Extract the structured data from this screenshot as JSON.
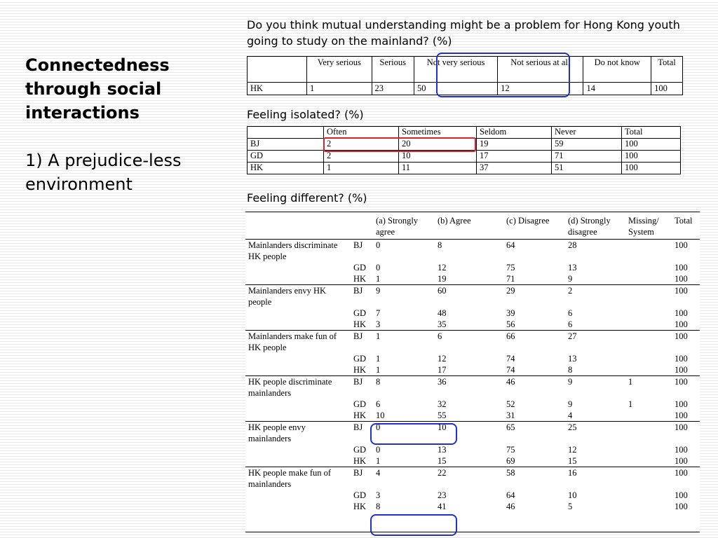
{
  "slide": {
    "title": "Connectedness through social interactions",
    "subtitle": "1) A prejudice-less environment"
  },
  "q1": {
    "caption": "Do you think mutual understanding might be a problem for Hong Kong youth going to study on the mainland? (%)",
    "headers": [
      "",
      "Very serious",
      "Serious",
      "Not very serious",
      "Not serious at all",
      "Do not know",
      "Total"
    ],
    "row": [
      "HK",
      "1",
      "23",
      "50",
      "12",
      "14",
      "100"
    ]
  },
  "q2": {
    "caption": "Feeling isolated? (%)",
    "headers": [
      "",
      "Often",
      "Sometimes",
      "Seldom",
      "Never",
      "Total"
    ],
    "rows": [
      [
        "BJ",
        "2",
        "20",
        "19",
        "59",
        "100"
      ],
      [
        "GD",
        "2",
        "10",
        "17",
        "71",
        "100"
      ],
      [
        "HK",
        "1",
        "11",
        "37",
        "51",
        "100"
      ]
    ]
  },
  "q3": {
    "caption": "Feeling different? (%)",
    "headers": [
      "",
      "",
      "(a) Strongly agree",
      "(b) Agree",
      "(c) Disagree",
      "(d) Strongly disagree",
      "Missing/ System",
      "Total"
    ],
    "groups": [
      {
        "statement": "Mainlanders discriminate HK people",
        "rows": [
          [
            "BJ",
            "0",
            "8",
            "64",
            "28",
            "",
            "100"
          ],
          [
            "GD",
            "0",
            "12",
            "75",
            "13",
            "",
            "100"
          ],
          [
            "HK",
            "1",
            "19",
            "71",
            "9",
            "",
            "100"
          ]
        ]
      },
      {
        "statement": "Mainlanders envy HK people",
        "rows": [
          [
            "BJ",
            "9",
            "60",
            "29",
            "2",
            "",
            "100"
          ],
          [
            "GD",
            "7",
            "48",
            "39",
            "6",
            "",
            "100"
          ],
          [
            "HK",
            "3",
            "35",
            "56",
            "6",
            "",
            "100"
          ]
        ]
      },
      {
        "statement": "Mainlanders make fun of HK people",
        "rows": [
          [
            "BJ",
            "1",
            "6",
            "66",
            "27",
            "",
            "100"
          ],
          [
            "GD",
            "1",
            "12",
            "74",
            "13",
            "",
            "100"
          ],
          [
            "HK",
            "1",
            "17",
            "74",
            "8",
            "",
            "100"
          ]
        ]
      },
      {
        "statement": "HK people discriminate mainlanders",
        "rows": [
          [
            "BJ",
            "8",
            "36",
            "46",
            "9",
            "1",
            "100"
          ],
          [
            "GD",
            "6",
            "32",
            "52",
            "9",
            "1",
            "100"
          ],
          [
            "HK",
            "10",
            "55",
            "31",
            "4",
            "",
            "100"
          ]
        ]
      },
      {
        "statement": "HK people envy mainlanders",
        "rows": [
          [
            "BJ",
            "0",
            "10",
            "65",
            "25",
            "",
            "100"
          ],
          [
            "GD",
            "0",
            "13",
            "75",
            "12",
            "",
            "100"
          ],
          [
            "HK",
            "1",
            "15",
            "69",
            "15",
            "",
            "100"
          ]
        ]
      },
      {
        "statement": "HK people make fun of mainlanders",
        "rows": [
          [
            "BJ",
            "4",
            "22",
            "58",
            "16",
            "",
            "100"
          ],
          [
            "GD",
            "3",
            "23",
            "64",
            "10",
            "",
            "100"
          ],
          [
            "HK",
            "8",
            "41",
            "46",
            "5",
            "",
            "100"
          ]
        ]
      }
    ]
  },
  "highlight_colors": {
    "blue": "#1f2fd0",
    "red": "#e0202a"
  }
}
